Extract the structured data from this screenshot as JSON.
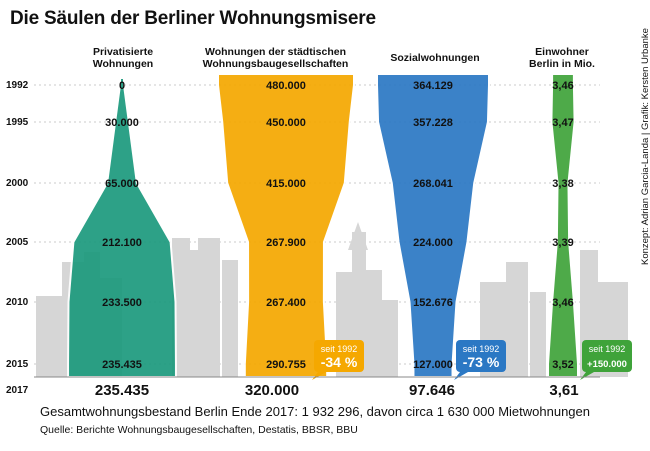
{
  "title": "Die Säulen der Berliner Wohnungsmisere",
  "credit": "Konzept: Adrian Garcia-Landa | Grafik: Kersten Urbanke",
  "summary": "Gesamtwohnungsbestand Berlin Ende 2017: 1 932 296, davon circa 1 630 000 Mietwohnungen",
  "source": "Quelle: Berichte Wohnungsbaugesellschaften, Destatis, BBSR, BBU",
  "colors": {
    "private": "#1c9a7d",
    "staedtisch": "#f5a800",
    "sozial": "#2b78c4",
    "einwohner": "#3fa33a",
    "city": "#d6d6d6"
  },
  "chart_data": {
    "type": "table",
    "years": [
      "1992",
      "1995",
      "2000",
      "2005",
      "2010",
      "2015"
    ],
    "total_year": "2017",
    "series": [
      {
        "name": "Privatisierte Wohnungen",
        "values": [
          0,
          30000,
          65000,
          212100,
          233500,
          235435
        ],
        "labels": [
          "0",
          "30.000",
          "65.000",
          "212.100",
          "233.500",
          "235.435"
        ],
        "total": "235.435"
      },
      {
        "name": "Wohnungen der städtischen Wohnungsbaugesellschaften",
        "values": [
          480000,
          450000,
          415000,
          267900,
          267400,
          290755
        ],
        "labels": [
          "480.000",
          "450.000",
          "415.000",
          "267.900",
          "267.400",
          "290.755"
        ],
        "total": "320.000",
        "badge": {
          "top": "seit 1992",
          "bottom": "-34 %"
        }
      },
      {
        "name": "Sozialwohnungen",
        "values": [
          364129,
          357228,
          268041,
          224000,
          152676,
          127000
        ],
        "labels": [
          "364.129",
          "357.228",
          "268.041",
          "224.000",
          "152.676",
          "127.000"
        ],
        "total": "97.646",
        "badge": {
          "top": "seit 1992",
          "bottom": "-73 %"
        }
      },
      {
        "name": "Einwohner Berlin in Mio.",
        "values": [
          3.46,
          3.47,
          3.38,
          3.39,
          3.46,
          3.52
        ],
        "labels": [
          "3,46",
          "3,47",
          "3,38",
          "3,39",
          "3,46",
          "3,52"
        ],
        "total": "3,61",
        "badge": {
          "top": "seit 1992",
          "bottom": "+150.000"
        }
      }
    ]
  }
}
